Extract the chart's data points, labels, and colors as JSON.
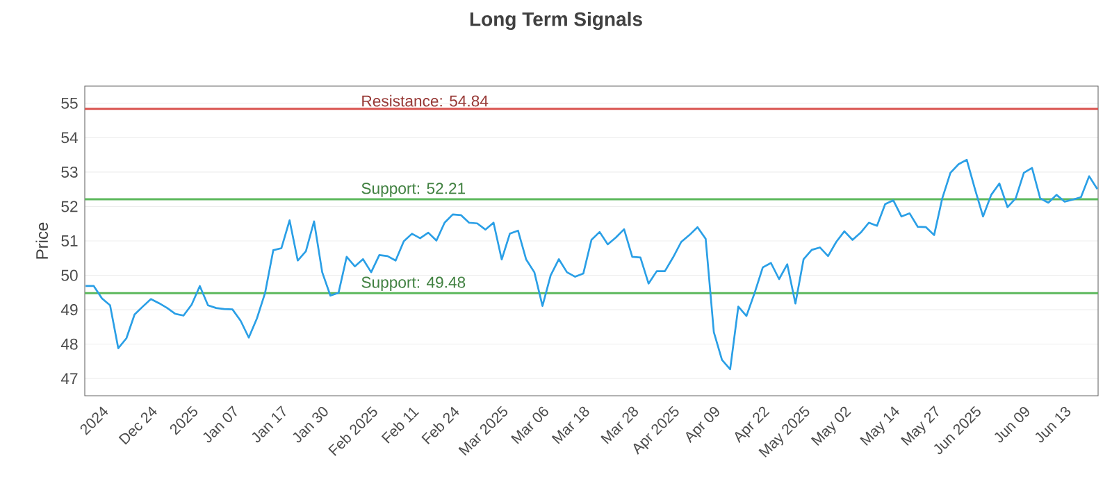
{
  "chart_data": {
    "type": "line",
    "title": "Long Term Signals",
    "ylabel": "Price",
    "categories": [
      null,
      null,
      "2024",
      null,
      null,
      null,
      null,
      null,
      "Dec 24",
      null,
      null,
      null,
      null,
      "2025",
      null,
      null,
      null,
      null,
      "Jan 07",
      null,
      null,
      null,
      null,
      null,
      "Jan 17",
      null,
      null,
      null,
      null,
      "Jan 30",
      null,
      null,
      null,
      null,
      null,
      "Feb 2025",
      null,
      null,
      null,
      null,
      "Feb 11",
      null,
      null,
      null,
      null,
      "Feb 24",
      null,
      null,
      null,
      null,
      null,
      "Mar 2025",
      null,
      null,
      null,
      null,
      "Mar 06",
      null,
      null,
      null,
      null,
      "Mar 18",
      null,
      null,
      null,
      null,
      null,
      "Mar 28",
      null,
      null,
      null,
      null,
      "Apr 2025",
      null,
      null,
      null,
      null,
      "Apr 09",
      null,
      null,
      null,
      null,
      null,
      "Apr 22",
      null,
      null,
      null,
      null,
      "May 2025",
      null,
      null,
      null,
      null,
      "May 02",
      null,
      null,
      null,
      null,
      null,
      "May 14",
      null,
      null,
      null,
      null,
      "May 27",
      null,
      null,
      null,
      null,
      "Jun 2025",
      null,
      null,
      null,
      null,
      null,
      "Jun 09",
      null,
      null,
      null,
      null,
      "Jun 13",
      null,
      null,
      null,
      null
    ],
    "series": [
      {
        "color": "#2a9fe6",
        "values": [
          49.69,
          49.69,
          49.33,
          49.13,
          47.88,
          48.17,
          48.86,
          49.09,
          49.31,
          49.19,
          49.05,
          48.88,
          48.83,
          49.15,
          49.69,
          49.13,
          49.05,
          49.02,
          49.01,
          48.68,
          48.19,
          48.75,
          49.49,
          50.73,
          50.79,
          51.6,
          50.43,
          50.7,
          51.57,
          50.09,
          49.41,
          49.49,
          50.54,
          50.26,
          50.47,
          50.09,
          50.59,
          50.56,
          50.43,
          50.99,
          51.21,
          51.08,
          51.24,
          51.01,
          51.53,
          51.77,
          51.75,
          51.53,
          51.51,
          51.33,
          51.53,
          50.46,
          51.21,
          51.3,
          50.46,
          50.09,
          49.11,
          50.0,
          50.47,
          50.09,
          49.96,
          50.05,
          51.03,
          51.26,
          50.9,
          51.1,
          51.34,
          50.54,
          50.52,
          49.76,
          50.12,
          50.12,
          50.52,
          50.97,
          51.17,
          51.4,
          51.06,
          48.35,
          47.54,
          47.27,
          49.09,
          48.82,
          49.49,
          50.23,
          50.36,
          49.89,
          50.32,
          49.18,
          50.47,
          50.74,
          50.81,
          50.56,
          50.97,
          51.28,
          51.03,
          51.24,
          51.53,
          51.44,
          52.07,
          52.18,
          51.71,
          51.8,
          51.41,
          51.4,
          51.17,
          52.24,
          52.98,
          53.23,
          53.36,
          52.51,
          51.71,
          52.34,
          52.67,
          51.98,
          52.24,
          52.98,
          53.12,
          52.24,
          52.11,
          52.34,
          52.14,
          52.2,
          52.27,
          52.88,
          52.51
        ]
      }
    ],
    "ylim": [
      46.5,
      55.5
    ],
    "yticks": [
      47,
      48,
      49,
      50,
      51,
      52,
      53,
      54,
      55
    ],
    "grid": "y",
    "marker": "none",
    "line_style": "solid",
    "ref_lines": [
      {
        "axis": "y",
        "value": 54.84,
        "label": "Resistance: 54.84",
        "color": "#d9534f"
      },
      {
        "axis": "y",
        "value": 52.21,
        "label": "Support: 52.21",
        "color": "#5cb85c"
      },
      {
        "axis": "y",
        "value": 49.48,
        "label": "Support: 49.48",
        "color": "#5cb85c"
      }
    ]
  }
}
